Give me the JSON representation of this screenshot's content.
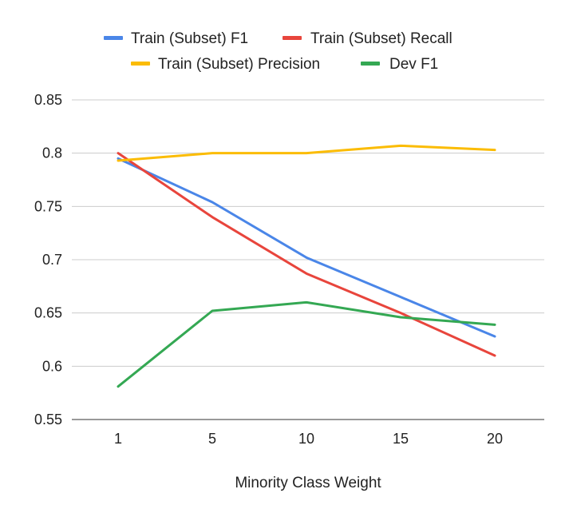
{
  "chart_data": {
    "type": "line",
    "title": "",
    "xlabel": "Minority Class Weight",
    "ylabel": "",
    "categories": [
      "1",
      "5",
      "10",
      "15",
      "20"
    ],
    "ylim": [
      0.55,
      0.85
    ],
    "yticks": [
      "0.55",
      "0.6",
      "0.65",
      "0.7",
      "0.75",
      "0.8",
      "0.85"
    ],
    "grid": true,
    "legend_position": "top",
    "series": [
      {
        "name": "Train (Subset) F1",
        "color": "#4a86e8",
        "values": [
          0.795,
          0.754,
          0.702,
          0.665,
          0.628
        ]
      },
      {
        "name": "Train (Subset) Recall",
        "color": "#e8453c",
        "values": [
          0.8,
          0.74,
          0.687,
          0.65,
          0.61
        ]
      },
      {
        "name": "Train (Subset) Precision",
        "color": "#fbbc04",
        "values": [
          0.793,
          0.8,
          0.8,
          0.807,
          0.803
        ]
      },
      {
        "name": "Dev F1",
        "color": "#34a853",
        "values": [
          0.581,
          0.652,
          0.66,
          0.646,
          0.639
        ]
      }
    ]
  }
}
